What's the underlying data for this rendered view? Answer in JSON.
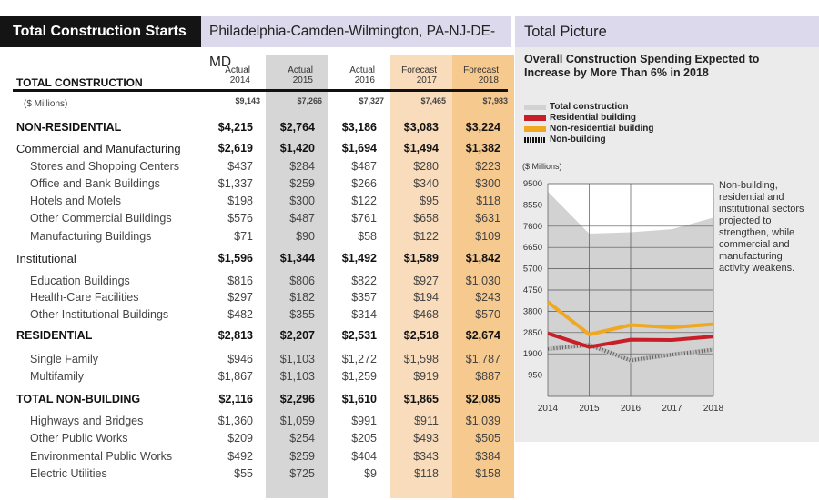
{
  "header": {
    "section_title": "Total Construction Starts",
    "region": "Philadelphia-Camden-Wilmington, PA-NJ-DE-MD",
    "panel_title": "Total Picture"
  },
  "table": {
    "title": "TOTAL CONSTRUCTION",
    "columns": [
      {
        "kind": "Actual",
        "year": "2014"
      },
      {
        "kind": "Actual",
        "year": "2015"
      },
      {
        "kind": "Actual",
        "year": "2016"
      },
      {
        "kind": "Forecast",
        "year": "2017"
      },
      {
        "kind": "Forecast",
        "year": "2018"
      }
    ],
    "rows": [
      {
        "label": "($ Millions)",
        "style": "units",
        "values": [
          "$9,143",
          "$7,266",
          "$7,327",
          "$7,465",
          "$7,983"
        ]
      },
      {
        "label": "NON-RESIDENTIAL",
        "style": "bold",
        "values": [
          "$4,215",
          "$2,764",
          "$3,186",
          "$3,083",
          "$3,224"
        ]
      },
      {
        "label": "Commercial and Manufacturing",
        "style": "cat",
        "values": [
          "$2,619",
          "$1,420",
          "$1,694",
          "$1,494",
          "$1,382"
        ]
      },
      {
        "label": "Stores and Shopping Centers",
        "style": "sub",
        "values": [
          "$437",
          "$284",
          "$487",
          "$280",
          "$223"
        ]
      },
      {
        "label": "Office and Bank Buildings",
        "style": "sub",
        "values": [
          "$1,337",
          "$259",
          "$266",
          "$340",
          "$300"
        ]
      },
      {
        "label": "Hotels and Motels",
        "style": "sub",
        "values": [
          "$198",
          "$300",
          "$122",
          "$95",
          "$118"
        ]
      },
      {
        "label": "Other Commercial Buildings",
        "style": "sub",
        "values": [
          "$576",
          "$487",
          "$761",
          "$658",
          "$631"
        ]
      },
      {
        "label": "Manufacturing Buildings",
        "style": "sub",
        "values": [
          "$71",
          "$90",
          "$58",
          "$122",
          "$109"
        ]
      },
      {
        "label": "Institutional",
        "style": "cat",
        "values": [
          "$1,596",
          "$1,344",
          "$1,492",
          "$1,589",
          "$1,842"
        ]
      },
      {
        "label": "Education Buildings",
        "style": "sub",
        "values": [
          "$816",
          "$806",
          "$822",
          "$927",
          "$1,030"
        ]
      },
      {
        "label": "Health-Care Facilities",
        "style": "sub",
        "values": [
          "$297",
          "$182",
          "$357",
          "$194",
          "$243"
        ]
      },
      {
        "label": "Other Institutional Buildings",
        "style": "sub",
        "values": [
          "$482",
          "$355",
          "$314",
          "$468",
          "$570"
        ]
      },
      {
        "label": "RESIDENTIAL",
        "style": "bold",
        "values": [
          "$2,813",
          "$2,207",
          "$2,531",
          "$2,518",
          "$2,674"
        ]
      },
      {
        "label": "Single Family",
        "style": "sub",
        "values": [
          "$946",
          "$1,103",
          "$1,272",
          "$1,598",
          "$1,787"
        ]
      },
      {
        "label": "Multifamily",
        "style": "sub",
        "values": [
          "$1,867",
          "$1,103",
          "$1,259",
          "$919",
          "$887"
        ]
      },
      {
        "label": "TOTAL NON-BUILDING",
        "style": "bold",
        "values": [
          "$2,116",
          "$2,296",
          "$1,610",
          "$1,865",
          "$2,085"
        ]
      },
      {
        "label": "Highways and Bridges",
        "style": "sub",
        "values": [
          "$1,360",
          "$1,059",
          "$991",
          "$911",
          "$1,039"
        ]
      },
      {
        "label": "Other Public Works",
        "style": "sub",
        "values": [
          "$209",
          "$254",
          "$205",
          "$493",
          "$505"
        ]
      },
      {
        "label": "Environmental Public Works",
        "style": "sub",
        "values": [
          "$492",
          "$259",
          "$404",
          "$343",
          "$384"
        ]
      },
      {
        "label": "Electric Utilities",
        "style": "sub",
        "values": [
          "$55",
          "$725",
          "$9",
          "$118",
          "$158"
        ]
      }
    ]
  },
  "chart_data": {
    "type": "line",
    "title": "Overall Construction Spending Expected to Increase by More Than 6% in 2018",
    "ylabel": "($ Millions)",
    "x": [
      "2014",
      "2015",
      "2016",
      "2017",
      "2018"
    ],
    "yticks": [
      950,
      1900,
      2850,
      3800,
      4750,
      5700,
      6650,
      7600,
      8550,
      9500
    ],
    "ylim": [
      0,
      9500
    ],
    "grid": true,
    "legend_position": "top-left",
    "series": [
      {
        "name": "Total construction",
        "values": [
          9143,
          7266,
          7327,
          7465,
          7983
        ],
        "color": "#d2d2d2",
        "style": "area"
      },
      {
        "name": "Residential building",
        "values": [
          2813,
          2207,
          2531,
          2518,
          2674
        ],
        "color": "#c81e2a",
        "style": "line"
      },
      {
        "name": "Non-residential building",
        "values": [
          4215,
          2764,
          3186,
          3083,
          3224
        ],
        "color": "#f0a820",
        "style": "line"
      },
      {
        "name": "Non-building",
        "values": [
          2116,
          2296,
          1610,
          1865,
          2085
        ],
        "color": "#111111",
        "style": "hatched"
      }
    ],
    "note": "Non-building, residential and institutional sectors projected to strengthen, while commercial and manufacturing activity weakens."
  }
}
